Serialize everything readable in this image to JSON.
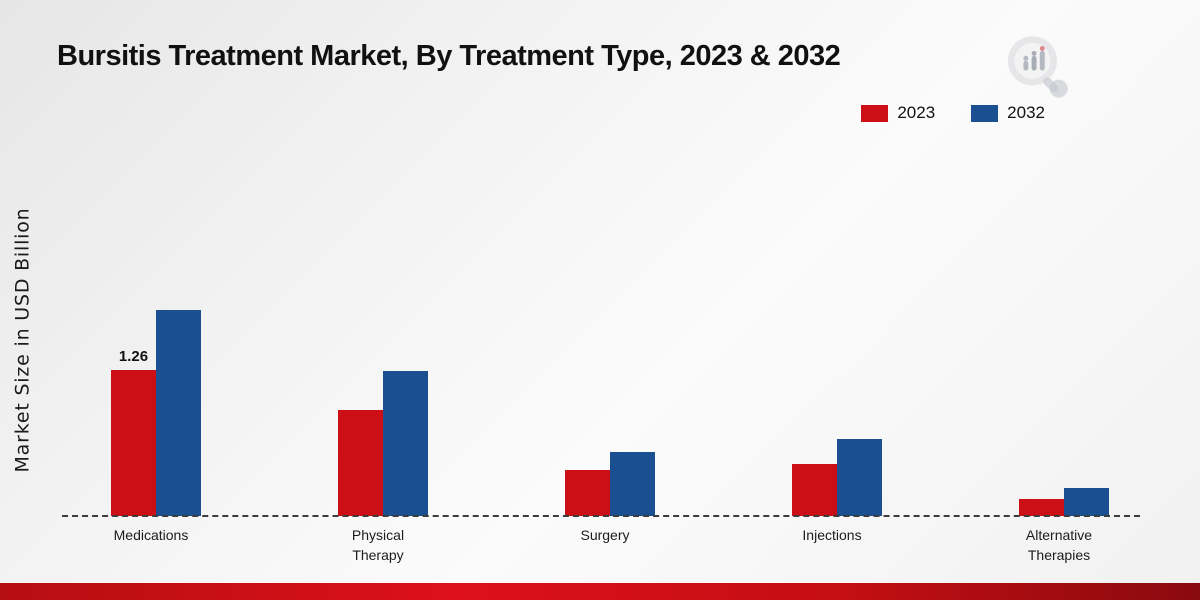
{
  "page": {
    "title": "Bursitis Treatment Market, By Treatment Type, 2023 & 2032",
    "ylabel": "Market Size in USD Billion"
  },
  "legend": [
    {
      "label": "2023",
      "color": "#cc0f16"
    },
    {
      "label": "2032",
      "color": "#1a4f91"
    }
  ],
  "chart_data": {
    "type": "bar",
    "title": "Bursitis Treatment Market, By Treatment Type, 2023 & 2032",
    "xlabel": "",
    "ylabel": "Market Size in USD Billion",
    "categories": [
      "Medications",
      "Physical Therapy",
      "Surgery",
      "Injections",
      "Alternative Therapies"
    ],
    "series": [
      {
        "name": "2023",
        "color": "#cc0f16",
        "values": [
          1.26,
          0.91,
          0.4,
          0.45,
          0.15
        ]
      },
      {
        "name": "2032",
        "color": "#1a4f91",
        "values": [
          1.78,
          1.25,
          0.55,
          0.66,
          0.24
        ]
      }
    ],
    "annotations": [
      {
        "series": "2023",
        "category": "Medications",
        "text": "1.26"
      }
    ],
    "ylim": [
      0,
      2.0
    ],
    "grid": false,
    "legend_position": "top-right",
    "baseline_style": "dashed",
    "axis_ticks_visible": false
  }
}
